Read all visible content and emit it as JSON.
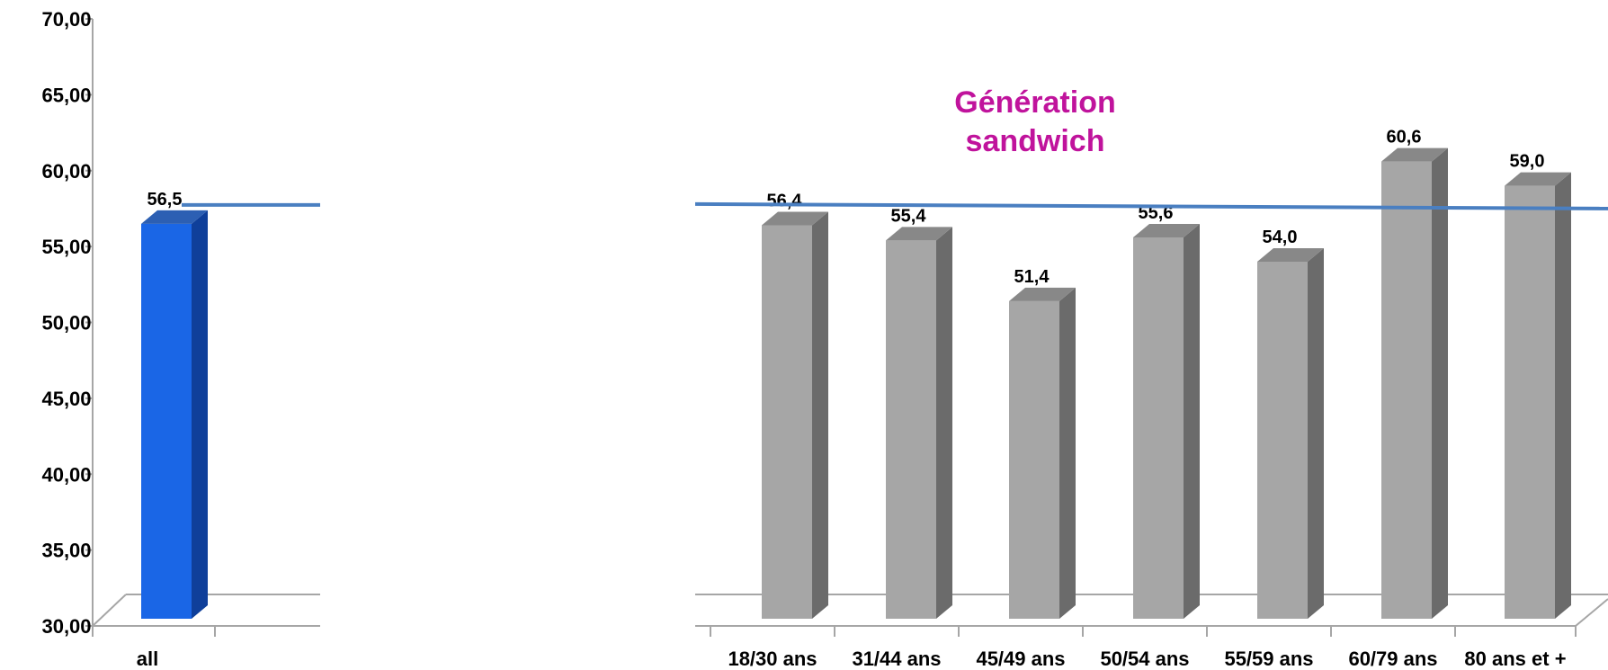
{
  "chart_data": [
    {
      "type": "bar",
      "categories": [
        "all"
      ],
      "values": [
        56.5
      ],
      "value_labels": [
        "56,5"
      ],
      "reference_line": 57.8,
      "ylim": [
        30,
        70
      ],
      "y_ticks": [
        "30,00",
        "35,00",
        "40,00",
        "45,00",
        "50,00",
        "55,00",
        "60,00",
        "65,00",
        "70,00"
      ],
      "bar_color": "#1a66e6",
      "title": "",
      "xlabel": "",
      "ylabel": ""
    },
    {
      "type": "bar",
      "categories": [
        "18/30 ans",
        "31/44 ans",
        "45/49 ans",
        "50/54 ans",
        "55/59 ans",
        "60/79 ans",
        "80 ans et +"
      ],
      "values": [
        56.4,
        55.4,
        51.4,
        55.6,
        54.0,
        60.6,
        59.0
      ],
      "value_labels": [
        "56,4",
        "55,4",
        "51,4",
        "55,6",
        "54,0",
        "60,6",
        "59,0"
      ],
      "reference_line": 57.8,
      "ylim": [
        30,
        70
      ],
      "bar_color": "#a6a6a6",
      "annotation": [
        "Génération",
        "sandwich"
      ],
      "annotation_color": "#c0139c",
      "title": "",
      "xlabel": "",
      "ylabel": ""
    }
  ],
  "colors": {
    "reference_line": "#4a7fc1",
    "axis": "#a6a6a6"
  }
}
